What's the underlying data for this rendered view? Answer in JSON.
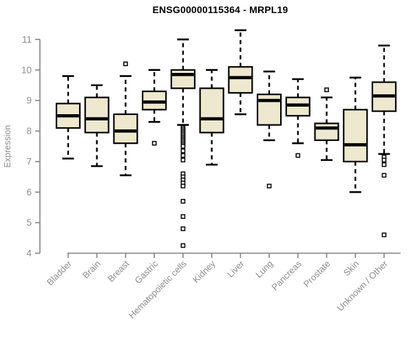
{
  "chart_data": {
    "type": "boxplot",
    "title": "ENSG00000115364 - MRPL19",
    "xlabel": "",
    "ylabel": "Expression",
    "ylim": [
      4,
      11
    ],
    "yticks": [
      4,
      5,
      6,
      7,
      8,
      9,
      10,
      11
    ],
    "grid": false,
    "legend": false,
    "categories": [
      "Bladder",
      "Brain",
      "Breast",
      "Gastric",
      "Hematopoietic cells",
      "Kidney",
      "Liver",
      "Lung",
      "Pancreas",
      "Prostate",
      "Skin",
      "Unknown / Other"
    ],
    "series": [
      {
        "name": "Bladder",
        "whisker_low": 7.1,
        "q1": 8.1,
        "median": 8.5,
        "q3": 8.9,
        "whisker_high": 9.8,
        "outliers": []
      },
      {
        "name": "Brain",
        "whisker_low": 6.85,
        "q1": 7.95,
        "median": 8.4,
        "q3": 9.1,
        "whisker_high": 9.5,
        "outliers": []
      },
      {
        "name": "Breast",
        "whisker_low": 6.55,
        "q1": 7.6,
        "median": 8.0,
        "q3": 8.55,
        "whisker_high": 9.8,
        "outliers": [
          10.2
        ]
      },
      {
        "name": "Gastric",
        "whisker_low": 8.3,
        "q1": 8.7,
        "median": 8.95,
        "q3": 9.3,
        "whisker_high": 10.0,
        "outliers": [
          7.6
        ]
      },
      {
        "name": "Hematopoietic cells",
        "whisker_low": 8.2,
        "q1": 9.4,
        "median": 9.85,
        "q3": 10.0,
        "whisker_high": 11.0,
        "outliers": [
          8.1,
          8.05,
          8.0,
          7.95,
          7.9,
          7.85,
          7.8,
          7.75,
          7.7,
          7.65,
          7.6,
          7.55,
          7.5,
          7.35,
          7.2,
          7.05,
          6.6,
          6.5,
          6.4,
          6.3,
          6.2,
          5.7,
          5.2,
          4.8,
          4.25
        ]
      },
      {
        "name": "Kidney",
        "whisker_low": 6.9,
        "q1": 7.95,
        "median": 8.4,
        "q3": 9.4,
        "whisker_high": 10.0,
        "outliers": []
      },
      {
        "name": "Liver",
        "whisker_low": 8.55,
        "q1": 9.25,
        "median": 9.75,
        "q3": 10.1,
        "whisker_high": 11.3,
        "outliers": []
      },
      {
        "name": "Lung",
        "whisker_low": 7.7,
        "q1": 8.2,
        "median": 9.0,
        "q3": 9.2,
        "whisker_high": 9.95,
        "outliers": [
          6.2
        ]
      },
      {
        "name": "Pancreas",
        "whisker_low": 7.6,
        "q1": 8.5,
        "median": 8.85,
        "q3": 9.1,
        "whisker_high": 9.7,
        "outliers": [
          7.2
        ]
      },
      {
        "name": "Prostate",
        "whisker_low": 7.05,
        "q1": 7.7,
        "median": 8.1,
        "q3": 8.25,
        "whisker_high": 9.1,
        "outliers": [
          9.35
        ]
      },
      {
        "name": "Skin",
        "whisker_low": 6.0,
        "q1": 7.0,
        "median": 7.55,
        "q3": 8.7,
        "whisker_high": 9.75,
        "outliers": []
      },
      {
        "name": "Unknown / Other",
        "whisker_low": 7.25,
        "q1": 8.65,
        "median": 9.15,
        "q3": 9.6,
        "whisker_high": 10.8,
        "outliers": [
          7.15,
          7.05,
          6.9,
          6.55,
          4.6
        ]
      }
    ],
    "colors": {
      "box_fill": "#ede8ce",
      "box_border": "#000000",
      "median": "#000000",
      "whisker": "#000000",
      "outlier_fill": "#ffffff",
      "axis": "#828282",
      "tick_label": "#8c8c8c",
      "title": "#000000",
      "background": "#ffffff"
    }
  }
}
